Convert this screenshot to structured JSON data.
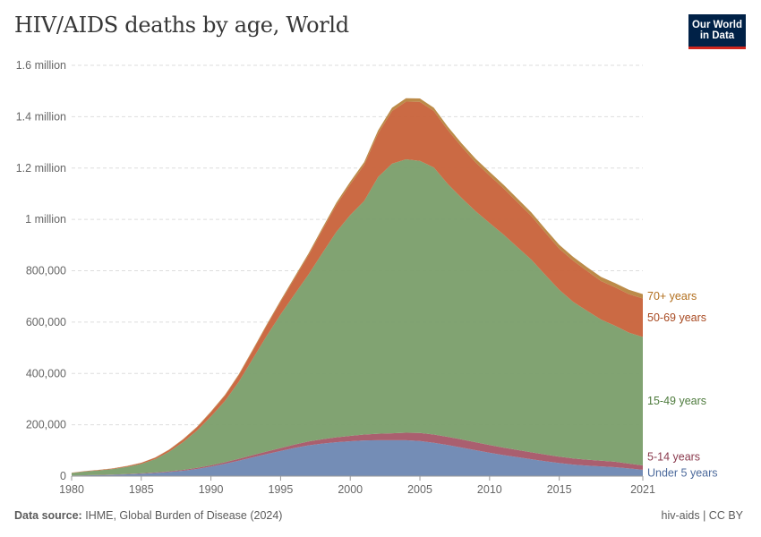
{
  "header": {
    "title": "HIV/AIDS deaths by age, World",
    "logo_line1": "Our World",
    "logo_line2": "in Data"
  },
  "footer": {
    "source_label": "Data source:",
    "source_text": "IHME, Global Burden of Disease (2024)",
    "right_text": "hiv-aids | CC BY"
  },
  "colors": {
    "under5": "#6d87b2",
    "age5_14": "#a55667",
    "age15_49": "#7a9e6a",
    "age50_69": "#c8623a",
    "age70": "#b8853f",
    "brand": "#002147",
    "brand_accent": "#ce261e"
  },
  "chart_data": {
    "type": "area",
    "stacked": true,
    "title": "HIV/AIDS deaths by age, World",
    "x_ticks": [
      1980,
      1985,
      1990,
      1995,
      2000,
      2005,
      2010,
      2015,
      2021
    ],
    "y_ticks": [
      {
        "value": 0,
        "label": "0"
      },
      {
        "value": 200000,
        "label": "200,000"
      },
      {
        "value": 400000,
        "label": "400,000"
      },
      {
        "value": 600000,
        "label": "600,000"
      },
      {
        "value": 800000,
        "label": "800,000"
      },
      {
        "value": 1000000,
        "label": "1 million"
      },
      {
        "value": 1200000,
        "label": "1.2 million"
      },
      {
        "value": 1400000,
        "label": "1.4 million"
      },
      {
        "value": 1600000,
        "label": "1.6 million"
      }
    ],
    "xlim": [
      1980,
      2021
    ],
    "ylim": [
      0,
      1600000
    ],
    "grid": "horizontal dashed",
    "legend": "right, inline labels",
    "x": [
      1980,
      1981,
      1982,
      1983,
      1984,
      1985,
      1986,
      1987,
      1988,
      1989,
      1990,
      1991,
      1992,
      1993,
      1994,
      1995,
      1996,
      1997,
      1998,
      1999,
      2000,
      2001,
      2002,
      2003,
      2004,
      2005,
      2006,
      2007,
      2008,
      2009,
      2010,
      2011,
      2012,
      2013,
      2014,
      2015,
      2016,
      2017,
      2018,
      2019,
      2020,
      2021
    ],
    "series": [
      {
        "name": "Under 5 years",
        "color_key": "under5",
        "values": [
          2000,
          3000,
          4000,
          5000,
          7000,
          9000,
          12000,
          16000,
          21000,
          28000,
          37000,
          48000,
          60000,
          73000,
          86000,
          98000,
          110000,
          120000,
          127000,
          132000,
          136000,
          139000,
          140000,
          140000,
          140000,
          137000,
          130000,
          121000,
          111000,
          101000,
          91000,
          82000,
          74000,
          66000,
          58000,
          51000,
          45000,
          41000,
          38000,
          35000,
          30000,
          25000
        ]
      },
      {
        "name": "5-14 years",
        "color_key": "age5_14",
        "values": [
          300,
          500,
          700,
          1000,
          1300,
          1700,
          2200,
          2800,
          3500,
          4300,
          5200,
          6200,
          7400,
          8700,
          10000,
          11500,
          13000,
          15000,
          17000,
          19000,
          21000,
          23000,
          25000,
          27000,
          29000,
          31000,
          32000,
          32000,
          32000,
          31000,
          30000,
          29000,
          28000,
          27000,
          26000,
          25000,
          24000,
          23000,
          22000,
          21000,
          19000,
          17000
        ]
      },
      {
        "name": "15-49 years",
        "color_key": "age15_49",
        "values": [
          10000,
          15000,
          18000,
          22000,
          28000,
          37000,
          52000,
          76000,
          108000,
          145000,
          190000,
          238000,
          300000,
          375000,
          450000,
          520000,
          585000,
          650000,
          725000,
          800000,
          860000,
          910000,
          1000000,
          1050000,
          1065000,
          1060000,
          1040000,
          985000,
          940000,
          900000,
          865000,
          830000,
          790000,
          750000,
          700000,
          650000,
          610000,
          580000,
          550000,
          530000,
          510000,
          500000
        ]
      },
      {
        "name": "50-69 years",
        "color_key": "age50_69",
        "values": [
          800,
          1200,
          1600,
          2200,
          3000,
          4000,
          5500,
          7500,
          10000,
          13000,
          17000,
          21000,
          26000,
          32000,
          40000,
          50000,
          62000,
          75000,
          90000,
          105000,
          120000,
          140000,
          170000,
          205000,
          225000,
          230000,
          220000,
          210000,
          200000,
          190000,
          185000,
          180000,
          175000,
          170000,
          165000,
          160000,
          160000,
          155000,
          150000,
          150000,
          150000,
          150000
        ]
      },
      {
        "name": "70+ years",
        "color_key": "age70",
        "values": [
          200,
          300,
          400,
          500,
          600,
          800,
          1000,
          1300,
          1600,
          2000,
          2500,
          3000,
          3500,
          4000,
          4500,
          5000,
          6000,
          7000,
          8000,
          9000,
          10000,
          11000,
          12000,
          13000,
          13000,
          13000,
          13000,
          13000,
          13000,
          14000,
          14000,
          14000,
          14000,
          14000,
          14000,
          15000,
          15000,
          15000,
          16000,
          16000,
          17000,
          17000
        ]
      }
    ]
  }
}
